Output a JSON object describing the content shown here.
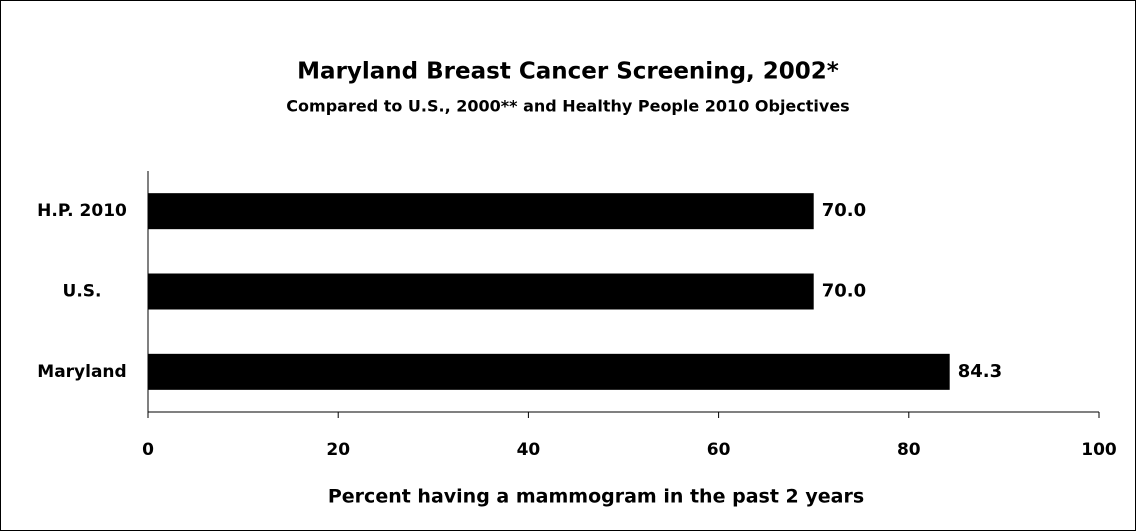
{
  "chart_data": {
    "type": "bar",
    "orientation": "horizontal",
    "title": "Maryland Breast Cancer Screening, 2002*",
    "subtitle": "Compared to U.S., 2000** and Healthy People 2010 Objectives",
    "x_label": "Percent having a mammogram in the past 2 years",
    "categories": [
      "H.P. 2010",
      "U.S.",
      "Maryland"
    ],
    "values": [
      70.0,
      70.0,
      84.3
    ],
    "value_labels": [
      "70.0",
      "70.0",
      "84.3"
    ],
    "color": "#000000",
    "xlim": [
      0,
      100
    ],
    "xticks": [
      0,
      20,
      40,
      60,
      80,
      100
    ]
  }
}
